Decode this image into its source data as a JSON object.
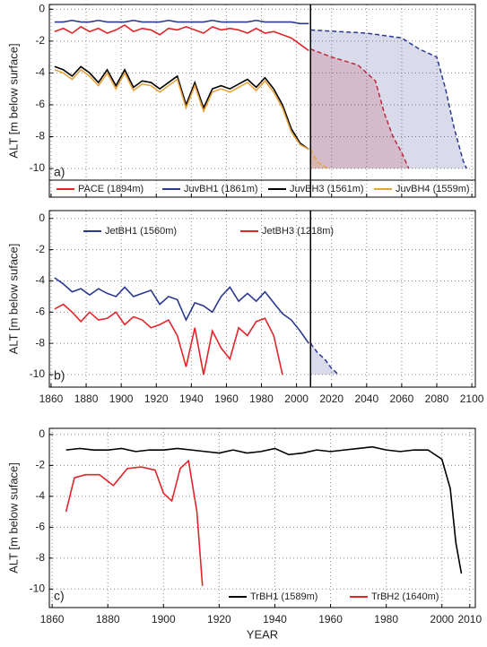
{
  "chart_data": [
    {
      "type": "line",
      "panel_label": "a)",
      "ylabel": "ALT [m below surface]",
      "xlim": [
        1859,
        2102
      ],
      "ylim": [
        -11.8,
        0.3
      ],
      "xticks": [
        1860,
        1880,
        1900,
        1920,
        1940,
        1960,
        1980,
        2000,
        2020,
        2040,
        2060,
        2080,
        2100
      ],
      "xtick_labels": false,
      "yticks": [
        0,
        -2,
        -4,
        -6,
        -8,
        -10
      ],
      "grid": true,
      "vline": 2008,
      "legend": "bottom",
      "series": [
        {
          "name": "PACE (1894m)",
          "color": "#e0262b",
          "x": [
            1862,
            1867,
            1872,
            1877,
            1882,
            1887,
            1892,
            1897,
            1902,
            1907,
            1912,
            1917,
            1922,
            1927,
            1932,
            1937,
            1942,
            1947,
            1952,
            1957,
            1962,
            1967,
            1972,
            1977,
            1982,
            1987,
            1992,
            1997,
            2002,
            2007
          ],
          "values": [
            -1.4,
            -1.2,
            -1.5,
            -1.1,
            -1.4,
            -1.2,
            -1.5,
            -1.3,
            -1.0,
            -1.4,
            -1.2,
            -1.3,
            -1.6,
            -1.2,
            -1.3,
            -1.1,
            -1.3,
            -1.5,
            -1.1,
            -1.3,
            -1.2,
            -1.3,
            -1.5,
            -1.2,
            -1.5,
            -1.4,
            -1.6,
            -1.8,
            -2.2,
            -2.6
          ],
          "projection_x": [
            2008,
            2020,
            2035,
            2045,
            2050,
            2055,
            2060,
            2064
          ],
          "projection_values": [
            -2.5,
            -3.0,
            -3.5,
            -4.5,
            -6.5,
            -8.0,
            -9.0,
            -10
          ]
        },
        {
          "name": "JuvBH1 (1861m)",
          "color": "#2b3990",
          "x": [
            1862,
            1867,
            1872,
            1877,
            1882,
            1887,
            1892,
            1897,
            1902,
            1907,
            1912,
            1917,
            1922,
            1927,
            1932,
            1937,
            1942,
            1947,
            1952,
            1957,
            1962,
            1967,
            1972,
            1977,
            1982,
            1987,
            1992,
            1997,
            2002,
            2007
          ],
          "values": [
            -0.8,
            -0.8,
            -0.7,
            -0.8,
            -0.8,
            -0.7,
            -0.8,
            -0.8,
            -0.8,
            -0.7,
            -0.8,
            -0.8,
            -0.8,
            -0.7,
            -0.8,
            -0.8,
            -0.8,
            -0.8,
            -0.7,
            -0.8,
            -0.8,
            -0.8,
            -0.8,
            -0.7,
            -0.8,
            -0.8,
            -0.8,
            -0.8,
            -0.9,
            -0.9
          ],
          "projection_x": [
            2008,
            2040,
            2060,
            2070,
            2080,
            2085,
            2090,
            2095,
            2097
          ],
          "projection_values": [
            -1.3,
            -1.5,
            -1.8,
            -2.5,
            -3.0,
            -5.0,
            -7.5,
            -9.5,
            -10
          ]
        },
        {
          "name": "JuvBH3 (1561m)",
          "color": "#000000",
          "x": [
            1862,
            1867,
            1872,
            1877,
            1882,
            1887,
            1892,
            1897,
            1902,
            1907,
            1912,
            1917,
            1922,
            1927,
            1932,
            1937,
            1942,
            1947,
            1952,
            1957,
            1962,
            1967,
            1972,
            1977,
            1982,
            1987,
            1992,
            1997,
            2002,
            2007
          ],
          "values": [
            -3.6,
            -3.8,
            -4.2,
            -3.6,
            -4.0,
            -4.6,
            -3.8,
            -4.8,
            -3.8,
            -4.9,
            -4.5,
            -4.6,
            -5.0,
            -4.6,
            -4.2,
            -6.0,
            -4.6,
            -6.2,
            -5.0,
            -4.8,
            -5.0,
            -4.7,
            -4.4,
            -4.9,
            -4.3,
            -5.0,
            -6.0,
            -7.5,
            -8.4,
            -8.8
          ]
        },
        {
          "name": "JuvBH4 (1559m)",
          "color": "#e8a33d",
          "x": [
            1862,
            1867,
            1872,
            1877,
            1882,
            1887,
            1892,
            1897,
            1902,
            1907,
            1912,
            1917,
            1922,
            1927,
            1932,
            1937,
            1942,
            1947,
            1952,
            1957,
            1962,
            1967,
            1972,
            1977,
            1982,
            1987,
            1992,
            1997,
            2002,
            2007
          ],
          "values": [
            -3.8,
            -4.0,
            -4.4,
            -3.8,
            -4.2,
            -4.8,
            -4.0,
            -5.0,
            -4.0,
            -5.1,
            -4.7,
            -4.8,
            -5.2,
            -4.8,
            -4.4,
            -6.2,
            -4.8,
            -6.4,
            -5.2,
            -5.0,
            -5.2,
            -4.9,
            -4.6,
            -5.1,
            -4.5,
            -5.2,
            -6.2,
            -7.7,
            -8.5,
            -8.8
          ],
          "projection_x": [
            2008,
            2012,
            2018
          ],
          "projection_values": [
            -8.8,
            -9.6,
            -10
          ]
        }
      ]
    },
    {
      "type": "line",
      "panel_label": "b)",
      "ylabel": "ALT [m below suface]",
      "xlim": [
        1859,
        2102
      ],
      "ylim": [
        -10.8,
        0.5
      ],
      "xticks": [
        1860,
        1880,
        1900,
        1920,
        1940,
        1960,
        1980,
        2000,
        2020,
        2040,
        2060,
        2080,
        2100
      ],
      "xtick_labels": true,
      "yticks": [
        0,
        -2,
        -4,
        -6,
        -8,
        -10
      ],
      "grid": true,
      "vline": 2008,
      "legend": "top-left",
      "series": [
        {
          "name": "JetBH1 (1560m)",
          "color": "#2b3990",
          "x": [
            1862,
            1867,
            1872,
            1877,
            1882,
            1887,
            1892,
            1897,
            1902,
            1907,
            1912,
            1917,
            1922,
            1927,
            1932,
            1937,
            1942,
            1947,
            1952,
            1957,
            1962,
            1967,
            1972,
            1977,
            1982,
            1987,
            1992,
            1997,
            2002,
            2007
          ],
          "values": [
            -3.8,
            -4.2,
            -4.7,
            -4.5,
            -4.9,
            -4.5,
            -4.8,
            -5.0,
            -4.4,
            -5.0,
            -4.8,
            -4.6,
            -5.5,
            -5.0,
            -5.2,
            -6.5,
            -5.4,
            -5.6,
            -6.0,
            -5.0,
            -4.4,
            -5.3,
            -4.8,
            -5.3,
            -4.7,
            -5.4,
            -6.1,
            -6.5,
            -7.2,
            -8.0
          ],
          "projection_x": [
            2008,
            2012,
            2016,
            2020,
            2024
          ],
          "projection_values": [
            -8.0,
            -8.6,
            -9.0,
            -9.6,
            -10
          ]
        },
        {
          "name": "JetBH3 (1218m)",
          "color": "#e0262b",
          "x": [
            1862,
            1867,
            1872,
            1877,
            1882,
            1887,
            1892,
            1897,
            1902,
            1907,
            1912,
            1917,
            1922,
            1927,
            1932,
            1937,
            1942,
            1947,
            1952,
            1957,
            1962,
            1967,
            1972,
            1977,
            1982,
            1987,
            1992
          ],
          "values": [
            -5.8,
            -5.5,
            -6.0,
            -6.6,
            -6.0,
            -6.5,
            -6.4,
            -6.0,
            -6.8,
            -6.3,
            -6.5,
            -7.0,
            -6.8,
            -6.5,
            -7.5,
            -9.5,
            -7.0,
            -10.0,
            -7.2,
            -8.3,
            -9.0,
            -7.0,
            -7.5,
            -6.6,
            -6.4,
            -7.5,
            -10.0
          ]
        }
      ]
    },
    {
      "type": "line",
      "panel_label": "c)",
      "ylabel": "ALT [m below suface]",
      "xlabel": "YEAR",
      "xlim": [
        1859,
        2012
      ],
      "ylim": [
        -11.2,
        0.4
      ],
      "xticks": [
        1860,
        1880,
        1900,
        1920,
        1940,
        1960,
        1980,
        2000,
        2010
      ],
      "xtick_labels": true,
      "yticks": [
        0,
        -2,
        -4,
        -6,
        -8,
        -10
      ],
      "grid": true,
      "legend": "bottom-right",
      "series": [
        {
          "name": "TrBH1 (1589m)",
          "color": "#000000",
          "x": [
            1865,
            1870,
            1875,
            1880,
            1885,
            1890,
            1895,
            1900,
            1905,
            1910,
            1915,
            1920,
            1925,
            1930,
            1935,
            1940,
            1945,
            1950,
            1955,
            1960,
            1965,
            1970,
            1975,
            1980,
            1985,
            1990,
            1995,
            2000,
            2003,
            2005,
            2007
          ],
          "values": [
            -1.0,
            -0.9,
            -1.0,
            -1.0,
            -0.9,
            -1.1,
            -1.0,
            -1.0,
            -0.9,
            -1.0,
            -1.1,
            -1.2,
            -1.0,
            -1.2,
            -1.1,
            -0.9,
            -1.3,
            -1.2,
            -1.0,
            -1.1,
            -1.0,
            -0.9,
            -0.8,
            -1.0,
            -1.1,
            -1.0,
            -1.0,
            -1.6,
            -3.5,
            -7.0,
            -9.0
          ]
        },
        {
          "name": "TrBH2 (1640m)",
          "color": "#e0262b",
          "x": [
            1865,
            1868,
            1872,
            1877,
            1882,
            1887,
            1892,
            1897,
            1900,
            1903,
            1906,
            1909,
            1912,
            1914
          ],
          "values": [
            -5.0,
            -2.8,
            -2.6,
            -2.6,
            -3.3,
            -2.2,
            -2.1,
            -2.3,
            -3.8,
            -4.3,
            -2.2,
            -1.7,
            -5.0,
            -9.8
          ]
        }
      ]
    }
  ]
}
